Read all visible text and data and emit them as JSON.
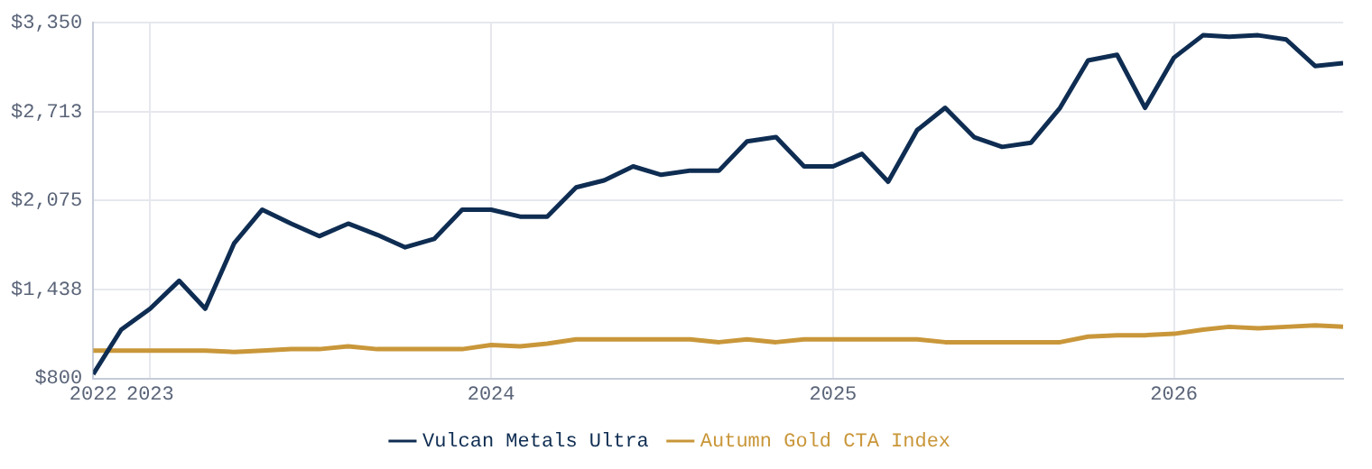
{
  "chart_data": {
    "type": "line",
    "x": [
      "2022-11",
      "2022-12",
      "2023-01",
      "2023-02",
      "2023-03",
      "2023-04",
      "2023-05",
      "2023-06",
      "2023-07",
      "2023-08",
      "2023-09",
      "2023-10",
      "2023-11",
      "2023-12",
      "2024-01",
      "2024-02",
      "2024-03",
      "2024-04",
      "2024-05",
      "2024-06",
      "2024-07",
      "2024-08",
      "2024-09",
      "2024-10",
      "2024-11",
      "2024-12",
      "2025-01",
      "2025-02",
      "2025-03",
      "2025-04",
      "2025-05",
      "2025-06",
      "2025-07",
      "2025-08",
      "2025-09",
      "2025-10",
      "2025-11",
      "2025-12",
      "2026-01",
      "2026-02",
      "2026-03",
      "2026-04",
      "2026-05",
      "2026-06",
      "2026-07"
    ],
    "series": [
      {
        "name": "Vulcan Metals Ultra",
        "color": "#0f2d52",
        "values": [
          830,
          1150,
          1300,
          1500,
          1300,
          1770,
          2010,
          1910,
          1820,
          1910,
          1830,
          1740,
          1800,
          2010,
          2010,
          1960,
          1960,
          2170,
          2220,
          2320,
          2260,
          2290,
          2290,
          2500,
          2530,
          2320,
          2320,
          2410,
          2210,
          2580,
          2740,
          2530,
          2460,
          2490,
          2740,
          3080,
          3120,
          2740,
          3100,
          3260,
          3250,
          3260,
          3230,
          3040,
          3060
        ]
      },
      {
        "name": "Autumn Gold CTA Index",
        "color": "#c9973a",
        "values": [
          1000,
          1000,
          1000,
          1000,
          1000,
          990,
          1000,
          1010,
          1010,
          1030,
          1010,
          1010,
          1010,
          1010,
          1040,
          1030,
          1050,
          1080,
          1080,
          1080,
          1080,
          1080,
          1060,
          1080,
          1060,
          1080,
          1080,
          1080,
          1080,
          1080,
          1060,
          1060,
          1060,
          1060,
          1060,
          1100,
          1110,
          1110,
          1120,
          1150,
          1170,
          1160,
          1170,
          1180,
          1170
        ]
      }
    ],
    "xlim": [
      "2022-11",
      "2026-07"
    ],
    "xticks": [
      {
        "value": "2022-11",
        "label": "2022"
      },
      {
        "value": "2023",
        "label": "2023"
      },
      {
        "value": "2024",
        "label": "2024"
      },
      {
        "value": "2025",
        "label": "2025"
      },
      {
        "value": "2026",
        "label": "2026"
      }
    ],
    "ylim": [
      800,
      3350
    ],
    "yticks": [
      {
        "value": 800,
        "label": "$800"
      },
      {
        "value": 1438,
        "label": "$1,438"
      },
      {
        "value": 2075,
        "label": "$2,075"
      },
      {
        "value": 2713,
        "label": "$2,713"
      },
      {
        "value": 3350,
        "label": "$3,350"
      }
    ],
    "grid": true,
    "legend": "bottom",
    "marker": "none",
    "line_style": "solid"
  }
}
